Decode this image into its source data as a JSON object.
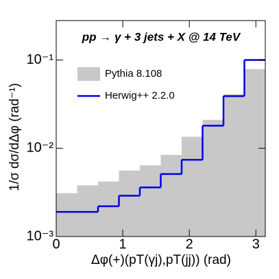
{
  "chart_data": {
    "type": "histogram",
    "title": "pp → γ + 3 jets + X @ 14 TeV",
    "xlabel": "Δφ(+)(pT(γj),pT(jj)) (rad)",
    "ylabel": "1/σ dσ/dΔφ (rad⁻¹)",
    "bins": [
      0,
      0.31416,
      0.62832,
      0.94248,
      1.25664,
      1.5708,
      1.88496,
      2.19911,
      2.51327,
      2.82743,
      3.14159
    ],
    "series": [
      {
        "name": "Pythia 8.108",
        "color": "#c8c8c8",
        "style": "fill",
        "values": [
          0.0031,
          0.0038,
          0.0042,
          0.0056,
          0.0064,
          0.0084,
          0.0135,
          0.021,
          0.041,
          0.079
        ]
      },
      {
        "name": "Herwig++ 2.2.0",
        "color": "#0000e6",
        "style": "step",
        "values": [
          0.0019,
          0.0019,
          0.0022,
          0.0029,
          0.0036,
          0.0051,
          0.0074,
          0.018,
          0.039,
          0.1
        ]
      }
    ],
    "xlim": [
      0,
      3.14159
    ],
    "xticks": [
      0,
      1,
      2,
      3
    ],
    "ylim": [
      0.001,
      0.28
    ],
    "ylog": true,
    "yticks": [
      {
        "value": 0.001,
        "label": "10⁻³"
      },
      {
        "value": 0.01,
        "label": "10⁻²"
      },
      {
        "value": 0.1,
        "label": "10⁻¹"
      }
    ]
  }
}
